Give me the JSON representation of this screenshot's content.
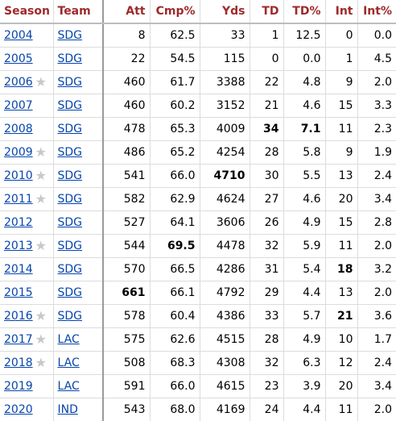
{
  "headers": [
    "Season",
    "Team",
    "Att",
    "Cmp%",
    "Yds",
    "TD",
    "TD%",
    "Int",
    "Int%"
  ],
  "rows": [
    {
      "season": "2004",
      "star": false,
      "team": "SDG",
      "att": "8",
      "cmp_pct": "62.5",
      "yds": "33",
      "td": "1",
      "td_pct": "12.5",
      "int": "0",
      "int_pct": "0.0",
      "bold": []
    },
    {
      "season": "2005",
      "star": false,
      "team": "SDG",
      "att": "22",
      "cmp_pct": "54.5",
      "yds": "115",
      "td": "0",
      "td_pct": "0.0",
      "int": "1",
      "int_pct": "4.5",
      "bold": []
    },
    {
      "season": "2006",
      "star": true,
      "team": "SDG",
      "att": "460",
      "cmp_pct": "61.7",
      "yds": "3388",
      "td": "22",
      "td_pct": "4.8",
      "int": "9",
      "int_pct": "2.0",
      "bold": []
    },
    {
      "season": "2007",
      "star": false,
      "team": "SDG",
      "att": "460",
      "cmp_pct": "60.2",
      "yds": "3152",
      "td": "21",
      "td_pct": "4.6",
      "int": "15",
      "int_pct": "3.3",
      "bold": []
    },
    {
      "season": "2008",
      "star": false,
      "team": "SDG",
      "att": "478",
      "cmp_pct": "65.3",
      "yds": "4009",
      "td": "34",
      "td_pct": "7.1",
      "int": "11",
      "int_pct": "2.3",
      "bold": [
        "td",
        "td_pct"
      ]
    },
    {
      "season": "2009",
      "star": true,
      "team": "SDG",
      "att": "486",
      "cmp_pct": "65.2",
      "yds": "4254",
      "td": "28",
      "td_pct": "5.8",
      "int": "9",
      "int_pct": "1.9",
      "bold": []
    },
    {
      "season": "2010",
      "star": true,
      "team": "SDG",
      "att": "541",
      "cmp_pct": "66.0",
      "yds": "4710",
      "td": "30",
      "td_pct": "5.5",
      "int": "13",
      "int_pct": "2.4",
      "bold": [
        "yds"
      ]
    },
    {
      "season": "2011",
      "star": true,
      "team": "SDG",
      "att": "582",
      "cmp_pct": "62.9",
      "yds": "4624",
      "td": "27",
      "td_pct": "4.6",
      "int": "20",
      "int_pct": "3.4",
      "bold": []
    },
    {
      "season": "2012",
      "star": false,
      "team": "SDG",
      "att": "527",
      "cmp_pct": "64.1",
      "yds": "3606",
      "td": "26",
      "td_pct": "4.9",
      "int": "15",
      "int_pct": "2.8",
      "bold": []
    },
    {
      "season": "2013",
      "star": true,
      "team": "SDG",
      "att": "544",
      "cmp_pct": "69.5",
      "yds": "4478",
      "td": "32",
      "td_pct": "5.9",
      "int": "11",
      "int_pct": "2.0",
      "bold": [
        "cmp_pct"
      ]
    },
    {
      "season": "2014",
      "star": false,
      "team": "SDG",
      "att": "570",
      "cmp_pct": "66.5",
      "yds": "4286",
      "td": "31",
      "td_pct": "5.4",
      "int": "18",
      "int_pct": "3.2",
      "bold": [
        "int"
      ]
    },
    {
      "season": "2015",
      "star": false,
      "team": "SDG",
      "att": "661",
      "cmp_pct": "66.1",
      "yds": "4792",
      "td": "29",
      "td_pct": "4.4",
      "int": "13",
      "int_pct": "2.0",
      "bold": [
        "att"
      ]
    },
    {
      "season": "2016",
      "star": true,
      "team": "SDG",
      "att": "578",
      "cmp_pct": "60.4",
      "yds": "4386",
      "td": "33",
      "td_pct": "5.7",
      "int": "21",
      "int_pct": "3.6",
      "bold": [
        "int"
      ]
    },
    {
      "season": "2017",
      "star": true,
      "team": "LAC",
      "att": "575",
      "cmp_pct": "62.6",
      "yds": "4515",
      "td": "28",
      "td_pct": "4.9",
      "int": "10",
      "int_pct": "1.7",
      "bold": []
    },
    {
      "season": "2018",
      "star": true,
      "team": "LAC",
      "att": "508",
      "cmp_pct": "68.3",
      "yds": "4308",
      "td": "32",
      "td_pct": "6.3",
      "int": "12",
      "int_pct": "2.4",
      "bold": []
    },
    {
      "season": "2019",
      "star": false,
      "team": "LAC",
      "att": "591",
      "cmp_pct": "66.0",
      "yds": "4615",
      "td": "23",
      "td_pct": "3.9",
      "int": "20",
      "int_pct": "3.4",
      "bold": []
    },
    {
      "season": "2020",
      "star": false,
      "team": "IND",
      "att": "543",
      "cmp_pct": "68.0",
      "yds": "4169",
      "td": "24",
      "td_pct": "4.4",
      "int": "11",
      "int_pct": "2.0",
      "bold": []
    }
  ],
  "colors": {
    "header_text": "#9e2a2b",
    "link": "#0645ad",
    "star": "#c8c8c8",
    "grid": "#dcdcdc"
  },
  "icons": {
    "star": "pro-bowl-star-icon"
  }
}
